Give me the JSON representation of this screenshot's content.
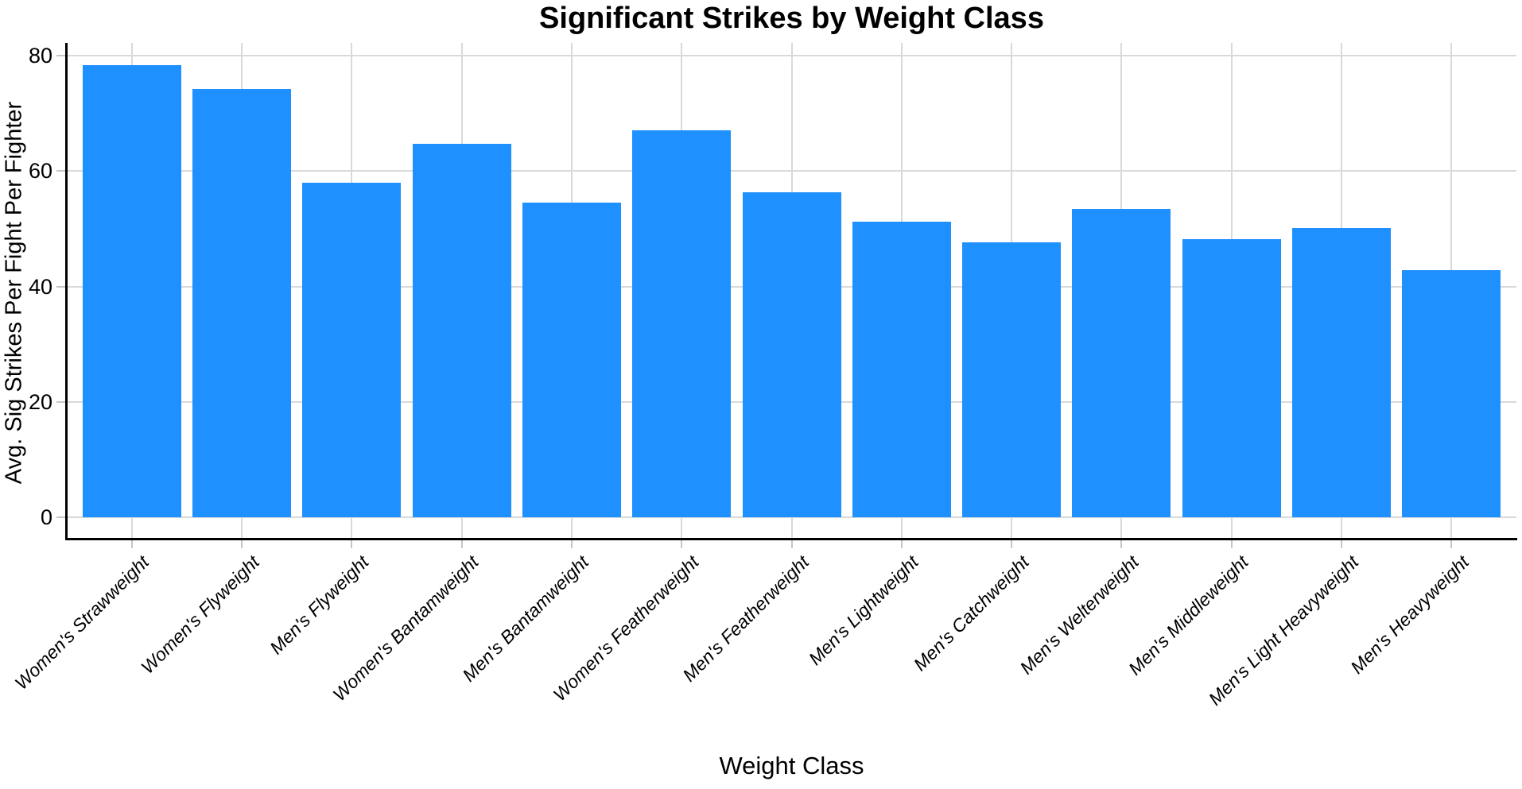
{
  "chart_data": {
    "type": "bar",
    "title": "Significant Strikes by Weight Class",
    "xlabel": "Weight Class",
    "ylabel": "Avg. Sig Strikes Per Fight Per Fighter",
    "categories": [
      "Women's Strawweight",
      "Women's Flyweight",
      "Men's Flyweight",
      "Women's Bantamweight",
      "Men's Bantamweight",
      "Women's Featherweight",
      "Men's Featherweight",
      "Men's Lightweight",
      "Men's Catchweight",
      "Men's Welterweight",
      "Men's Middleweight",
      "Men's Light Heavyweight",
      "Men's Heavyweight"
    ],
    "values": [
      78.4,
      74.2,
      58.0,
      64.7,
      54.5,
      67.1,
      56.3,
      51.2,
      47.6,
      53.5,
      48.2,
      50.1,
      42.9
    ],
    "yticks": [
      0,
      20,
      40,
      60,
      80
    ],
    "ylim": [
      0,
      83
    ],
    "bar_color": "#1e90ff",
    "grid_color": "#d9d9d9",
    "axis_color": "#000000",
    "grid": "major horizontal at yticks + vertical at each category center",
    "legend_position": "none",
    "xtick_style": "italic, rotated 45deg"
  }
}
